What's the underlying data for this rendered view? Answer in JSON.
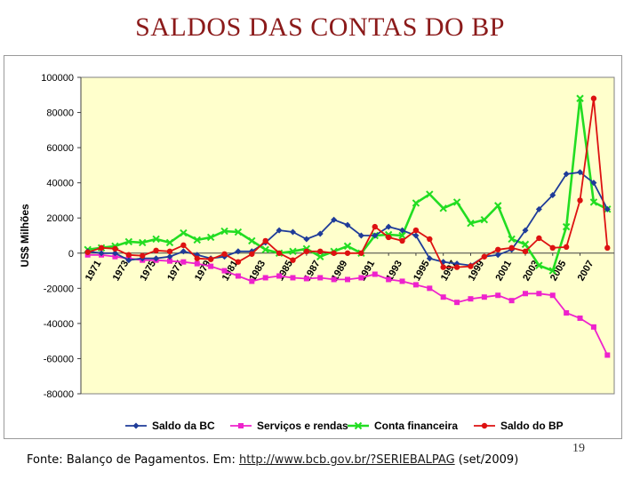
{
  "slide": {
    "title": "SALDOS DAS CONTAS DO BP",
    "page_number": "19",
    "source_prefix": "Fonte: Balanço de Pagamentos. Em: ",
    "source_link": "http://www.bcb.gov.br/?SERIEBALPAG",
    "source_suffix": " (set/2009)"
  },
  "chart_data": {
    "type": "line",
    "title": "",
    "xlabel": "",
    "ylabel": "US$ Milhões",
    "ylim": [
      -80000,
      100000
    ],
    "yticks": [
      100000,
      80000,
      60000,
      40000,
      20000,
      0,
      -20000,
      -40000,
      -60000,
      -80000
    ],
    "ytick_labels": [
      "100000",
      "80000",
      "60000",
      "40000",
      "20000",
      "0",
      "-20000",
      "-40000",
      "-60000",
      "-80000"
    ],
    "x": [
      1971,
      1972,
      1973,
      1974,
      1975,
      1976,
      1977,
      1978,
      1979,
      1980,
      1981,
      1982,
      1983,
      1984,
      1985,
      1986,
      1987,
      1988,
      1989,
      1990,
      1991,
      1992,
      1993,
      1994,
      1995,
      1996,
      1997,
      1998,
      1999,
      2000,
      2001,
      2002,
      2003,
      2004,
      2005,
      2006,
      2007,
      2008,
      2009
    ],
    "xtick_labels": [
      "1971",
      "1973",
      "1975",
      "1977",
      "1979",
      "1981",
      "1983",
      "1985",
      "1987",
      "1989",
      "1991",
      "1993",
      "1995",
      "1997",
      "1999",
      "2001",
      "2003",
      "2005",
      "2007"
    ],
    "grid": false,
    "legend_position": "bottom",
    "plot_background": "#ffffcc",
    "series": [
      {
        "name": "Saldo da BC",
        "color": "#1f3c99",
        "marker": "diamond",
        "values": [
          1000,
          0,
          0,
          -4000,
          -3000,
          -3000,
          -2000,
          1000,
          -1000,
          -3000,
          -2000,
          1000,
          1000,
          6000,
          13000,
          12000,
          8000,
          11000,
          19000,
          16000,
          10000,
          10000,
          15000,
          13000,
          10000,
          -3000,
          -5000,
          -6000,
          -7000,
          -2000,
          -1000,
          2000,
          13000,
          25000,
          33000,
          45000,
          46000,
          40000,
          25000
        ]
      },
      {
        "name": "Serviços e rendas",
        "color": "#ee22cc",
        "marker": "square",
        "values": [
          -1000,
          -1000,
          -2000,
          -3000,
          -4000,
          -4000,
          -4500,
          -5000,
          -6000,
          -7500,
          -10000,
          -13000,
          -16000,
          -14000,
          -13000,
          -14000,
          -14500,
          -14000,
          -15000,
          -15000,
          -14000,
          -12000,
          -15000,
          -16000,
          -18000,
          -20000,
          -25000,
          -28000,
          -26000,
          -25000,
          -24000,
          -27000,
          -23000,
          -23000,
          -24000,
          -34000,
          -37000,
          -42000,
          -58000
        ]
      },
      {
        "name": "Conta financeira",
        "color": "#22dd22",
        "marker": "x",
        "values": [
          2000,
          3000,
          4000,
          6500,
          6000,
          8000,
          6000,
          11500,
          7500,
          9000,
          12500,
          12000,
          7000,
          2000,
          0,
          1000,
          2500,
          -2000,
          1000,
          4000,
          0,
          10000,
          10500,
          10000,
          28500,
          33500,
          25500,
          29000,
          17000,
          19000,
          27000,
          8000,
          5000,
          -7000,
          -10000,
          15000,
          88000,
          29000,
          25000
        ]
      },
      {
        "name": "Saldo do BP",
        "color": "#dd1111",
        "marker": "circle",
        "values": [
          500,
          3000,
          2500,
          -1000,
          -1500,
          1500,
          1000,
          4500,
          -3000,
          -3500,
          -500,
          -5000,
          -500,
          7000,
          0,
          -4000,
          1000,
          1000,
          0,
          0,
          0,
          15000,
          9000,
          7000,
          13000,
          8000,
          -8000,
          -8000,
          -7500,
          -2000,
          2000,
          3000,
          1000,
          8500,
          3000,
          3500,
          30000,
          88000,
          3000
        ]
      }
    ]
  }
}
